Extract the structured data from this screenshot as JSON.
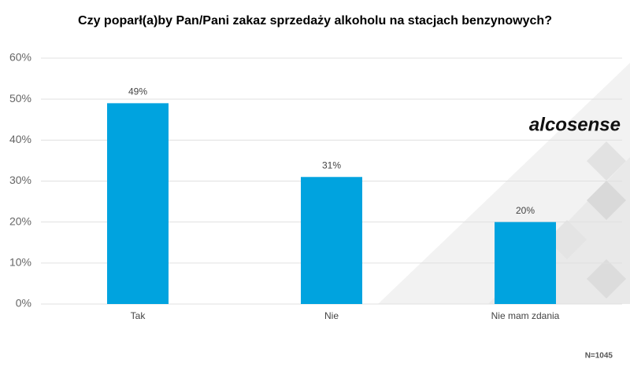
{
  "chart_data": {
    "type": "bar",
    "title": "Czy poparł(a)by Pan/Pani zakaz sprzedaży alkoholu na stacjach benzynowych?",
    "categories": [
      "Tak",
      "Nie",
      "Nie mam zdania"
    ],
    "values": [
      49,
      31,
      20
    ],
    "value_labels": [
      "49%",
      "31%",
      "20%"
    ],
    "color": "#00a3df",
    "ylim": [
      0,
      60
    ],
    "yticks": [
      {
        "value": 0,
        "label": "0%"
      },
      {
        "value": 10,
        "label": "10%"
      },
      {
        "value": 20,
        "label": "20%"
      },
      {
        "value": 30,
        "label": "30%"
      },
      {
        "value": 40,
        "label": "40%"
      },
      {
        "value": 50,
        "label": "50%"
      },
      {
        "value": 60,
        "label": "60%"
      }
    ],
    "grid": true,
    "annotations": [
      "N=1045"
    ],
    "logo": "alcosense"
  }
}
